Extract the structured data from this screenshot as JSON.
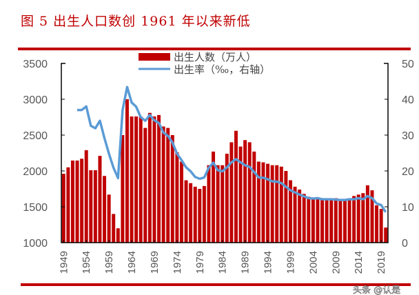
{
  "title": "图 5  出生人口数创 1961 年以来新低",
  "watermark": "头条 @认是",
  "chart_data": {
    "type": "bar+line",
    "title": "图 5  出生人口数创 1961 年以来新低",
    "legend_position": "top-center",
    "x": [
      1949,
      1950,
      1951,
      1952,
      1953,
      1954,
      1955,
      1956,
      1957,
      1958,
      1959,
      1960,
      1961,
      1962,
      1963,
      1964,
      1965,
      1966,
      1967,
      1968,
      1969,
      1970,
      1971,
      1972,
      1973,
      1974,
      1975,
      1976,
      1977,
      1978,
      1979,
      1980,
      1981,
      1982,
      1983,
      1984,
      1985,
      1986,
      1987,
      1988,
      1989,
      1990,
      1991,
      1992,
      1993,
      1994,
      1995,
      1996,
      1997,
      1998,
      1999,
      2000,
      2001,
      2002,
      2003,
      2004,
      2005,
      2006,
      2007,
      2008,
      2009,
      2010,
      2011,
      2012,
      2013,
      2014,
      2015,
      2016,
      2017,
      2018,
      2019,
      2020
    ],
    "x_tick_labels": [
      "1949",
      "1954",
      "1959",
      "1964",
      "1969",
      "1974",
      "1979",
      "1984",
      "1989",
      "1994",
      "1999",
      "2004",
      "2009",
      "2014",
      "2019"
    ],
    "left_axis": {
      "ylim": [
        1000,
        3500
      ],
      "ticks": [
        "1000",
        "1500",
        "2000",
        "2500",
        "3000",
        "3500"
      ]
    },
    "right_axis": {
      "ylim": [
        0,
        50
      ],
      "ticks": [
        "0",
        "10",
        "20",
        "30",
        "40",
        "50"
      ]
    },
    "series": [
      {
        "name": "出生人数（万人）",
        "type": "bar",
        "axis": "left",
        "color": "#c00000",
        "values": [
          1960,
          2050,
          2145,
          2145,
          2170,
          2290,
          2010,
          2010,
          2210,
          1930,
          1670,
          1400,
          1200,
          2500,
          3000,
          2760,
          2760,
          2760,
          2600,
          2810,
          2760,
          2780,
          2620,
          2600,
          2500,
          2260,
          2130,
          1870,
          1830,
          1780,
          1750,
          1790,
          2080,
          2270,
          2080,
          2080,
          2240,
          2400,
          2560,
          2340,
          2430,
          2400,
          2270,
          2130,
          2120,
          2100,
          2080,
          2080,
          2060,
          2000,
          1870,
          1780,
          1740,
          1680,
          1640,
          1620,
          1620,
          1600,
          1600,
          1610,
          1620,
          1600,
          1600,
          1620,
          1650,
          1670,
          1690,
          1800,
          1730,
          1520,
          1470,
          1210
        ]
      },
      {
        "name": "出生率（‰，右轴）",
        "type": "line",
        "axis": "right",
        "color": "#5b9bd5",
        "values": [
          null,
          null,
          null,
          37,
          37,
          38,
          32.6,
          31.9,
          34,
          29.2,
          24.8,
          20.9,
          18,
          37,
          43.4,
          39.1,
          37.9,
          35,
          34,
          35.6,
          34.1,
          33.4,
          30.7,
          29.8,
          27.9,
          24.8,
          23,
          21,
          19.9,
          18.3,
          17.8,
          18.2,
          20.9,
          22.3,
          20.2,
          19.9,
          21,
          22.4,
          23.3,
          22.4,
          21.6,
          21.1,
          19.7,
          18.2,
          18.1,
          17.7,
          17.1,
          17,
          16.6,
          15.6,
          14.6,
          14,
          13.4,
          12.9,
          12.4,
          12.3,
          12.4,
          12.1,
          12.1,
          12.1,
          12,
          11.9,
          11.9,
          12.1,
          12.1,
          12.4,
          12.1,
          13,
          12.4,
          10.9,
          10.5,
          8.5
        ]
      }
    ]
  }
}
